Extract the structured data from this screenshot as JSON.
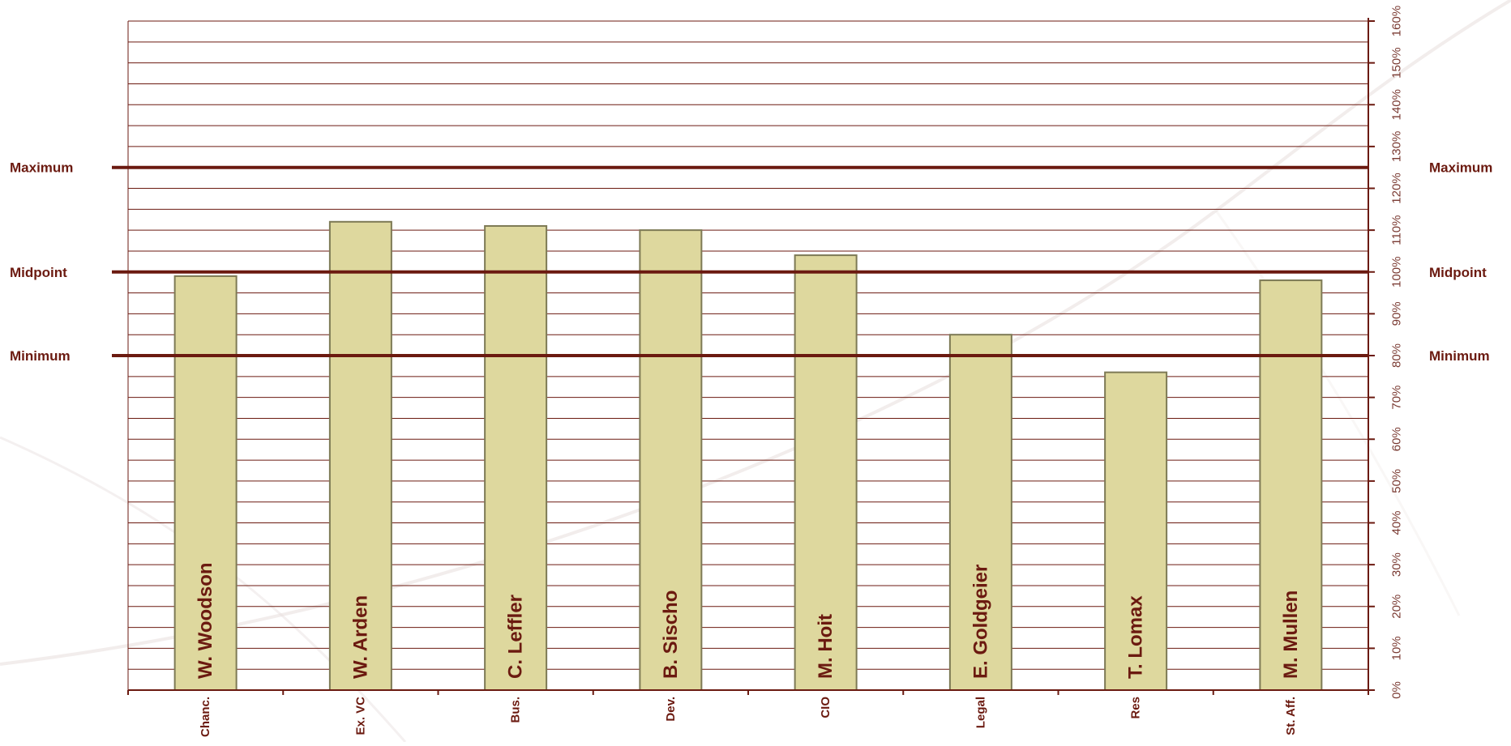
{
  "chart_data": {
    "type": "bar",
    "categories": [
      "Chanc.",
      "Ex. VC",
      "Bus.",
      "Dev.",
      "CIO",
      "Legal",
      "Res",
      "St. Aff."
    ],
    "bar_labels": [
      "W. Woodson",
      "W. Arden",
      "C. Leffler",
      "B. Sischo",
      "M. Hoit",
      "E. Goldgeier",
      "T. Lomax",
      "M. Mullen"
    ],
    "values": [
      99,
      112,
      111,
      110,
      104,
      85,
      76,
      98
    ],
    "ylim": [
      0,
      160
    ],
    "yticks": [
      0,
      10,
      20,
      30,
      40,
      50,
      60,
      70,
      80,
      90,
      100,
      110,
      120,
      130,
      140,
      150,
      160
    ],
    "ytick_labels": [
      "0%",
      "10%",
      "20%",
      "30%",
      "40%",
      "50%",
      "60%",
      "70%",
      "80%",
      "90%",
      "100%",
      "110%",
      "120%",
      "130%",
      "140%",
      "150%",
      "160%"
    ],
    "reference_lines": [
      {
        "label": "Maximum",
        "value": 125
      },
      {
        "label": "Midpoint",
        "value": 100
      },
      {
        "label": "Minimum",
        "value": 80
      }
    ],
    "grid": true,
    "axis_position": "right",
    "colors": {
      "bar_fill": "#ded89e",
      "bar_stroke": "#7d7a55",
      "reference_line": "#6b1a10",
      "gridline": "#6b1a10",
      "text": "#6b1a10"
    }
  }
}
